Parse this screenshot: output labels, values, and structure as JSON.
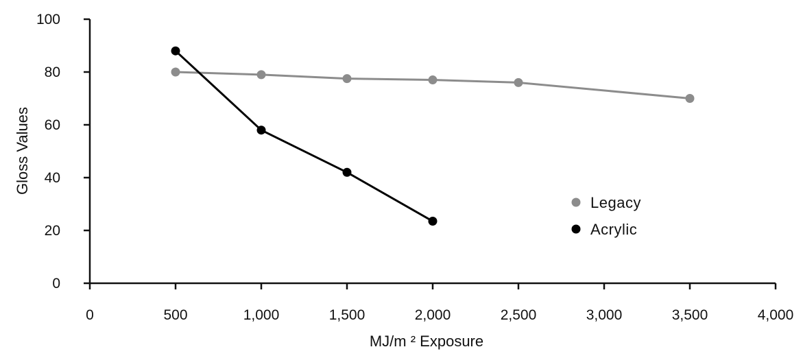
{
  "chart_data": {
    "type": "line",
    "title": "",
    "xlabel": "MJ/m ² Exposure",
    "ylabel": "Gloss Values",
    "xlim": [
      0,
      4000
    ],
    "ylim": [
      0,
      100
    ],
    "x_ticks": [
      0,
      500,
      1000,
      1500,
      2000,
      2500,
      3000,
      3500,
      4000
    ],
    "x_tick_labels": [
      "0",
      "500",
      "1,000",
      "1,500",
      "2,000",
      "2,500",
      "3,000",
      "3,500",
      "4,000"
    ],
    "y_ticks": [
      0,
      20,
      40,
      60,
      80,
      100
    ],
    "y_tick_labels": [
      "0",
      "20",
      "40",
      "60",
      "80",
      "100"
    ],
    "grid": false,
    "legend_position": "right",
    "series": [
      {
        "name": "Legacy",
        "color": "#8c8c8c",
        "x": [
          500,
          1000,
          1500,
          2000,
          2500,
          3500
        ],
        "y": [
          80,
          79,
          77.5,
          77,
          76,
          70
        ]
      },
      {
        "name": "Acrylic",
        "color": "#000000",
        "x": [
          500,
          1000,
          1500,
          2000
        ],
        "y": [
          88,
          58,
          42,
          23.5
        ]
      }
    ]
  }
}
